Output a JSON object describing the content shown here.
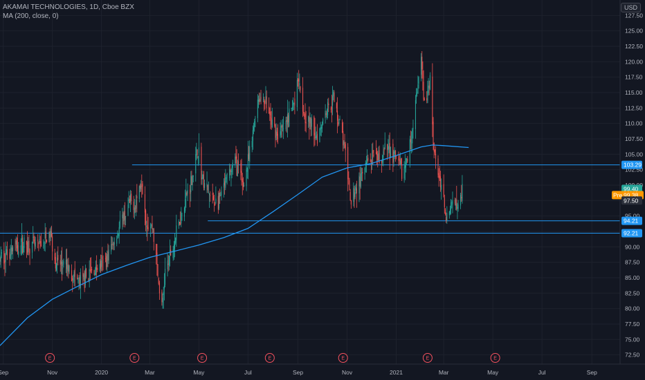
{
  "header": {
    "symbol_line": "AKAMAI TECHNOLOGIES, 1D, Cboe BZX",
    "indicator_line": "MA (200, close, 0)",
    "currency": "USD"
  },
  "colors": {
    "background": "#131722",
    "grid": "#1e222d",
    "up": "#26a69a",
    "down": "#ef5350",
    "ma": "#2196f3",
    "hline": "#2196f3",
    "pre": "#ff9800",
    "event": "#f7525f"
  },
  "chart_data": {
    "type": "candlestick",
    "ylim": [
      71,
      130
    ],
    "xlim": [
      "2019-08-28",
      "2021-10-06"
    ],
    "y_ticks": [
      72.5,
      75,
      77.5,
      80,
      82.5,
      85,
      87.5,
      90,
      92.5,
      95,
      97.5,
      100,
      102.5,
      105,
      107.5,
      110,
      112.5,
      115,
      117.5,
      120,
      122.5,
      125,
      127.5
    ],
    "x_ticks": [
      {
        "label": "Sep",
        "date": "2019-09-01"
      },
      {
        "label": "Nov",
        "date": "2019-11-01"
      },
      {
        "label": "2020",
        "date": "2020-01-01"
      },
      {
        "label": "Mar",
        "date": "2020-03-01"
      },
      {
        "label": "May",
        "date": "2020-05-01"
      },
      {
        "label": "Jul",
        "date": "2020-07-01"
      },
      {
        "label": "Sep",
        "date": "2020-09-01"
      },
      {
        "label": "Nov",
        "date": "2020-11-01"
      },
      {
        "label": "2021",
        "date": "2021-01-01"
      },
      {
        "label": "Mar",
        "date": "2021-03-01"
      },
      {
        "label": "May",
        "date": "2021-05-01"
      },
      {
        "label": "Jul",
        "date": "2021-07-01"
      },
      {
        "label": "Sep",
        "date": "2021-09-01"
      }
    ],
    "price_path": [
      {
        "date": "2019-08-28",
        "price": 88
      },
      {
        "date": "2019-09-10",
        "price": 89.5
      },
      {
        "date": "2019-09-25",
        "price": 90.5
      },
      {
        "date": "2019-10-15",
        "price": 90
      },
      {
        "date": "2019-10-30",
        "price": 92
      },
      {
        "date": "2019-11-05",
        "price": 87.5
      },
      {
        "date": "2019-11-20",
        "price": 86.5
      },
      {
        "date": "2019-12-05",
        "price": 84
      },
      {
        "date": "2019-12-20",
        "price": 86
      },
      {
        "date": "2020-01-05",
        "price": 87.5
      },
      {
        "date": "2020-01-20",
        "price": 92
      },
      {
        "date": "2020-02-05",
        "price": 97
      },
      {
        "date": "2020-02-12",
        "price": 97
      },
      {
        "date": "2020-02-20",
        "price": 101
      },
      {
        "date": "2020-02-26",
        "price": 94
      },
      {
        "date": "2020-03-05",
        "price": 93
      },
      {
        "date": "2020-03-12",
        "price": 84
      },
      {
        "date": "2020-03-16",
        "price": 80
      },
      {
        "date": "2020-03-20",
        "price": 86
      },
      {
        "date": "2020-03-30",
        "price": 90
      },
      {
        "date": "2020-04-10",
        "price": 96
      },
      {
        "date": "2020-04-22",
        "price": 101
      },
      {
        "date": "2020-04-30",
        "price": 106
      },
      {
        "date": "2020-05-05",
        "price": 101
      },
      {
        "date": "2020-05-15",
        "price": 98
      },
      {
        "date": "2020-05-25",
        "price": 97
      },
      {
        "date": "2020-06-05",
        "price": 101
      },
      {
        "date": "2020-06-15",
        "price": 104
      },
      {
        "date": "2020-06-25",
        "price": 100
      },
      {
        "date": "2020-07-05",
        "price": 106
      },
      {
        "date": "2020-07-12",
        "price": 114
      },
      {
        "date": "2020-07-22",
        "price": 114
      },
      {
        "date": "2020-07-30",
        "price": 110
      },
      {
        "date": "2020-08-08",
        "price": 108
      },
      {
        "date": "2020-08-18",
        "price": 110
      },
      {
        "date": "2020-08-28",
        "price": 114
      },
      {
        "date": "2020-09-02",
        "price": 118
      },
      {
        "date": "2020-09-08",
        "price": 112
      },
      {
        "date": "2020-09-15",
        "price": 110
      },
      {
        "date": "2020-09-25",
        "price": 108
      },
      {
        "date": "2020-10-05",
        "price": 112
      },
      {
        "date": "2020-10-15",
        "price": 114
      },
      {
        "date": "2020-10-25",
        "price": 109
      },
      {
        "date": "2020-11-01",
        "price": 103
      },
      {
        "date": "2020-11-05",
        "price": 97
      },
      {
        "date": "2020-11-10",
        "price": 99
      },
      {
        "date": "2020-11-18",
        "price": 101
      },
      {
        "date": "2020-11-28",
        "price": 104
      },
      {
        "date": "2020-12-10",
        "price": 104
      },
      {
        "date": "2020-12-22",
        "price": 106
      },
      {
        "date": "2021-01-02",
        "price": 104
      },
      {
        "date": "2021-01-08",
        "price": 102
      },
      {
        "date": "2021-01-15",
        "price": 104
      },
      {
        "date": "2021-01-22",
        "price": 110
      },
      {
        "date": "2021-01-28",
        "price": 116
      },
      {
        "date": "2021-02-01",
        "price": 120
      },
      {
        "date": "2021-02-05",
        "price": 113
      },
      {
        "date": "2021-02-10",
        "price": 115
      },
      {
        "date": "2021-02-12",
        "price": 118
      },
      {
        "date": "2021-02-16",
        "price": 107
      },
      {
        "date": "2021-02-22",
        "price": 102
      },
      {
        "date": "2021-02-28",
        "price": 98
      },
      {
        "date": "2021-03-05",
        "price": 95
      },
      {
        "date": "2021-03-09",
        "price": 96
      },
      {
        "date": "2021-03-14",
        "price": 98
      },
      {
        "date": "2021-03-19",
        "price": 97.5
      },
      {
        "date": "2021-03-24",
        "price": 99.4
      }
    ],
    "ma200_path": [
      {
        "date": "2019-08-28",
        "value": 74
      },
      {
        "date": "2019-10-01",
        "value": 78.5
      },
      {
        "date": "2019-11-01",
        "value": 81.5
      },
      {
        "date": "2019-12-01",
        "value": 83.5
      },
      {
        "date": "2020-01-01",
        "value": 85.5
      },
      {
        "date": "2020-02-01",
        "value": 87
      },
      {
        "date": "2020-03-01",
        "value": 88.3
      },
      {
        "date": "2020-04-01",
        "value": 89.3
      },
      {
        "date": "2020-05-01",
        "value": 90.3
      },
      {
        "date": "2020-06-01",
        "value": 91.5
      },
      {
        "date": "2020-07-01",
        "value": 93
      },
      {
        "date": "2020-08-01",
        "value": 95.7
      },
      {
        "date": "2020-09-01",
        "value": 98.5
      },
      {
        "date": "2020-10-01",
        "value": 101.3
      },
      {
        "date": "2020-11-01",
        "value": 102.8
      },
      {
        "date": "2020-12-01",
        "value": 103.5
      },
      {
        "date": "2021-01-01",
        "value": 104.8
      },
      {
        "date": "2021-02-01",
        "value": 106.2
      },
      {
        "date": "2021-02-15",
        "value": 106.5
      },
      {
        "date": "2021-03-01",
        "value": 106.4
      },
      {
        "date": "2021-04-01",
        "value": 106.1
      }
    ],
    "horizontal_levels": [
      {
        "value": 103.29,
        "label": "103.29",
        "from": "2020-02-08"
      },
      {
        "value": 94.21,
        "label": "94.21",
        "from": "2020-05-12"
      },
      {
        "value": 92.21,
        "label": "92.21",
        "from": "2019-08-28"
      }
    ],
    "price_tags": [
      {
        "value": 99.4,
        "label": "99.40",
        "color": "#26a69a"
      },
      {
        "value": 98.38,
        "label": "99.38",
        "prefix": "Pre",
        "color": "#ff9800"
      },
      {
        "value": 97.5,
        "label": "97.50",
        "color": "#2a2e39"
      }
    ],
    "events": [
      {
        "date": "2019-10-29",
        "label": "E"
      },
      {
        "date": "2020-02-11",
        "label": "E"
      },
      {
        "date": "2020-05-05",
        "label": "E"
      },
      {
        "date": "2020-07-28",
        "label": "E"
      },
      {
        "date": "2020-10-27",
        "label": "E"
      },
      {
        "date": "2021-02-09",
        "label": "E"
      },
      {
        "date": "2021-05-04",
        "label": "E"
      }
    ]
  }
}
